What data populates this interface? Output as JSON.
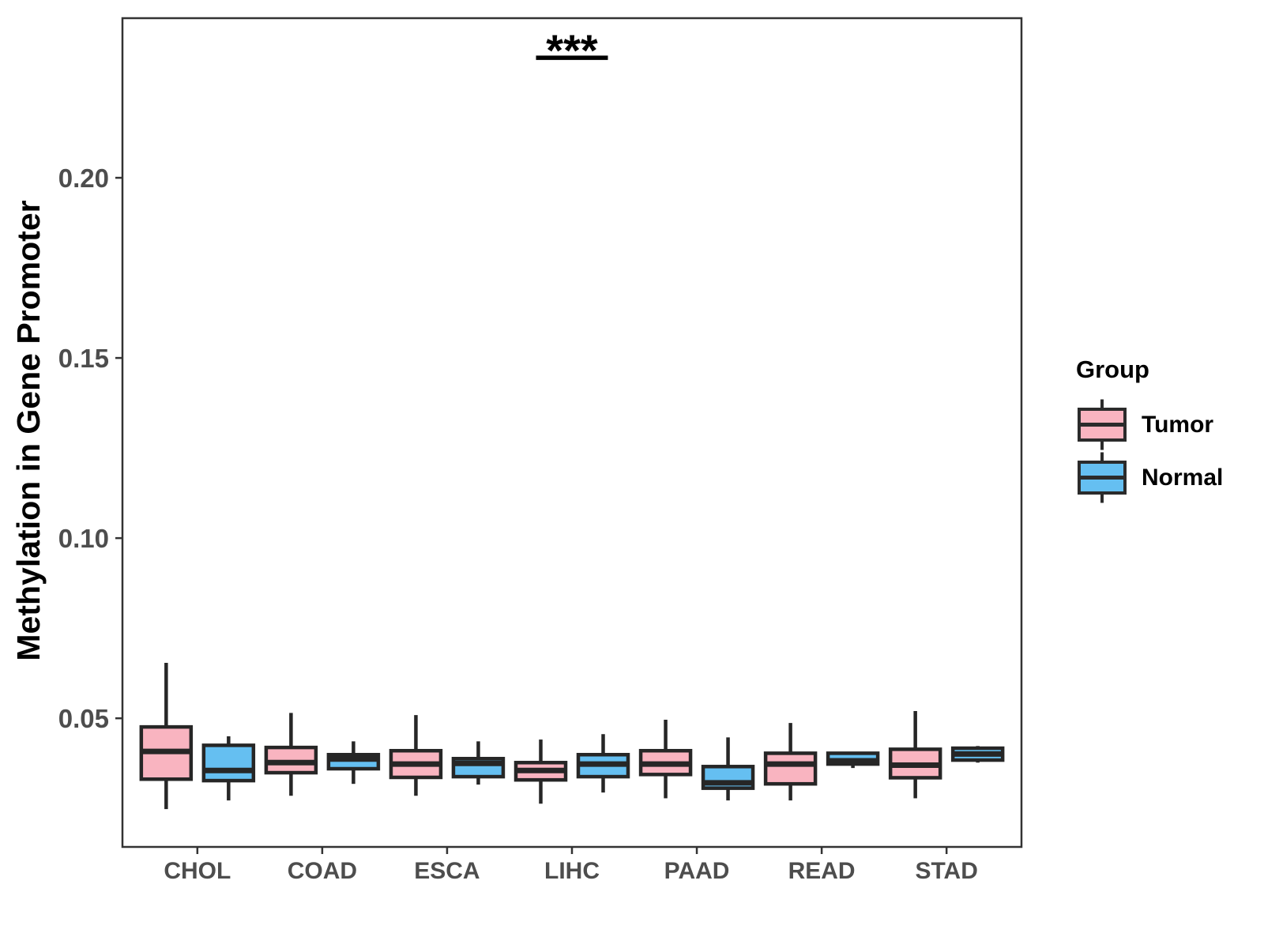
{
  "figure": {
    "background": "#ffffff"
  },
  "legend": {
    "title": "Group",
    "items": [
      {
        "label": "Tumor",
        "color": "#f9b4c0"
      },
      {
        "label": "Normal",
        "color": "#65bff1"
      }
    ]
  },
  "colors": {
    "box_border": "#262626",
    "axis": "#333333",
    "tick_label": "#4d4d4d",
    "annotation": "#000000",
    "panel_background": "#ffffff"
  },
  "chart_data": {
    "type": "boxplot",
    "title": "",
    "xlabel": "",
    "ylabel": "Methylation in Gene Promoter",
    "grid": false,
    "legend_position": "right",
    "categories": [
      "CHOL",
      "COAD",
      "ESCA",
      "LIHC",
      "PAAD",
      "READ",
      "STAD"
    ],
    "yticks": [
      {
        "value": 0.05,
        "label": "0.05"
      },
      {
        "value": 0.1,
        "label": "0.10"
      },
      {
        "value": 0.15,
        "label": "0.15"
      },
      {
        "value": 0.2,
        "label": "0.20"
      }
    ],
    "ylim": [
      0.0143,
      0.2443
    ],
    "series": [
      {
        "name": "Tumor",
        "color": "#f9b4c0",
        "stats": [
          {
            "whisker_low": 0.0248,
            "q1": 0.0331,
            "median": 0.0408,
            "q3": 0.0476,
            "whisker_high": 0.0654
          },
          {
            "whisker_low": 0.0285,
            "q1": 0.0349,
            "median": 0.0377,
            "q3": 0.0419,
            "whisker_high": 0.0515
          },
          {
            "whisker_low": 0.0285,
            "q1": 0.0336,
            "median": 0.0373,
            "q3": 0.041,
            "whisker_high": 0.0509
          },
          {
            "whisker_low": 0.0263,
            "q1": 0.0329,
            "median": 0.0355,
            "q3": 0.0377,
            "whisker_high": 0.0441
          },
          {
            "whisker_low": 0.0278,
            "q1": 0.0344,
            "median": 0.0373,
            "q3": 0.041,
            "whisker_high": 0.0496
          },
          {
            "whisker_low": 0.0272,
            "q1": 0.0318,
            "median": 0.0373,
            "q3": 0.0403,
            "whisker_high": 0.0487
          },
          {
            "whisker_low": 0.0278,
            "q1": 0.0335,
            "median": 0.037,
            "q3": 0.0414,
            "whisker_high": 0.052
          }
        ]
      },
      {
        "name": "Normal",
        "color": "#65bff1",
        "stats": [
          {
            "whisker_low": 0.0272,
            "q1": 0.0327,
            "median": 0.0355,
            "q3": 0.0425,
            "whisker_high": 0.045
          },
          {
            "whisker_low": 0.0318,
            "q1": 0.036,
            "median": 0.0387,
            "q3": 0.0399,
            "whisker_high": 0.0436
          },
          {
            "whisker_low": 0.0316,
            "q1": 0.0338,
            "median": 0.0375,
            "q3": 0.0388,
            "whisker_high": 0.0436
          },
          {
            "whisker_low": 0.0294,
            "q1": 0.0338,
            "median": 0.0373,
            "q3": 0.0399,
            "whisker_high": 0.0456
          },
          {
            "whisker_low": 0.0272,
            "q1": 0.0306,
            "median": 0.0321,
            "q3": 0.0366,
            "whisker_high": 0.0447
          },
          {
            "whisker_low": 0.0362,
            "q1": 0.0373,
            "median": 0.0382,
            "q3": 0.0403,
            "whisker_high": 0.0403
          },
          {
            "whisker_low": 0.0377,
            "q1": 0.0384,
            "median": 0.0401,
            "q3": 0.0417,
            "whisker_high": 0.0423
          }
        ]
      }
    ],
    "annotations": [
      {
        "label": "***",
        "category": "LIHC",
        "bar_y": 0.2333,
        "spans": "pair"
      }
    ]
  }
}
